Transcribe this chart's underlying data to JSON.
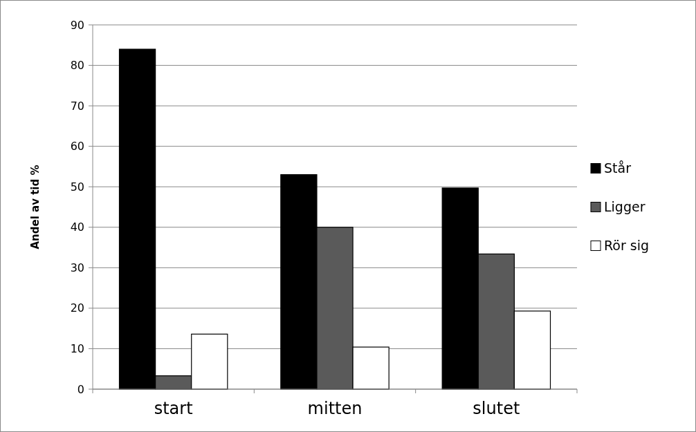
{
  "chart_data": {
    "type": "bar",
    "ylabel": "Andel av tid %",
    "categories": [
      "start",
      "mitten",
      "slutet"
    ],
    "series": [
      {
        "name": "Står",
        "color": "#000000",
        "values": [
          84,
          53,
          49.7
        ]
      },
      {
        "name": "Ligger",
        "color": "#5a5a5a",
        "values": [
          3.3,
          40,
          33.4
        ]
      },
      {
        "name": "Rör sig",
        "color": "#ffffff",
        "values": [
          13.6,
          10.4,
          19.3
        ]
      }
    ],
    "ylim": [
      0,
      90
    ],
    "yticks": [
      0,
      10,
      20,
      30,
      40,
      50,
      60,
      70,
      80,
      90
    ],
    "grid": "y",
    "legend": "right"
  }
}
